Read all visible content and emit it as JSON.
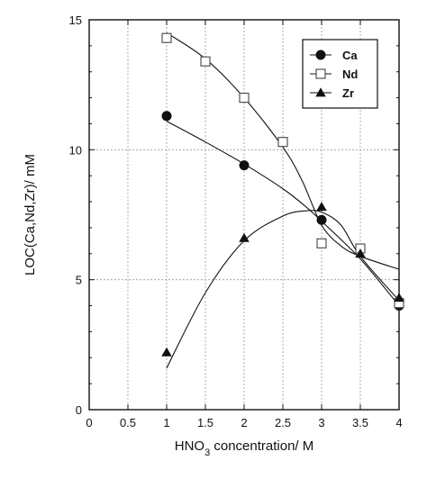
{
  "chart_data": {
    "type": "scatter",
    "title": "",
    "xlabel": "HNO3 concentration/ M",
    "xlabel_parts": {
      "pre": "HNO",
      "sub": "3",
      "post": " concentration/ M"
    },
    "ylabel": "LOC(Ca,Nd,Zr)/ mM",
    "xlim": [
      0,
      4
    ],
    "ylim": [
      0,
      15
    ],
    "xticks": [
      "0",
      "0.5",
      "1",
      "1.5",
      "2",
      "2.5",
      "3",
      "3.5",
      "4"
    ],
    "yticks": [
      "0",
      "5",
      "10",
      "15"
    ],
    "grid": true,
    "legend_position": "top-right",
    "series": [
      {
        "name": "Ca",
        "marker": "filled-circle",
        "color": "#111111",
        "x": [
          1,
          2,
          3,
          4
        ],
        "y": [
          11.3,
          9.4,
          7.3,
          4.0
        ],
        "curve": [
          [
            1,
            11.1
          ],
          [
            1.5,
            10.3
          ],
          [
            2,
            9.45
          ],
          [
            2.5,
            8.5
          ],
          [
            2.8,
            7.8
          ],
          [
            3,
            7.25
          ],
          [
            3.5,
            5.8
          ],
          [
            4,
            4.0
          ]
        ]
      },
      {
        "name": "Nd",
        "marker": "open-square",
        "color": "#333333",
        "x": [
          1,
          1.5,
          2,
          2.5,
          3,
          3.5,
          4
        ],
        "y": [
          14.3,
          13.4,
          12.0,
          10.3,
          6.4,
          6.2,
          4.1
        ],
        "curve": [
          [
            1,
            14.5
          ],
          [
            1.5,
            13.5
          ],
          [
            2,
            12.0
          ],
          [
            2.5,
            10.1
          ],
          [
            2.75,
            8.8
          ],
          [
            3,
            7.1
          ],
          [
            3.25,
            6.3
          ],
          [
            3.5,
            5.9
          ],
          [
            4,
            5.4
          ]
        ]
      },
      {
        "name": "Zr",
        "marker": "filled-triangle",
        "color": "#111111",
        "x": [
          1,
          2,
          3,
          3.5,
          4
        ],
        "y": [
          2.2,
          6.6,
          7.8,
          6.0,
          4.3
        ],
        "curve": [
          [
            1,
            1.6
          ],
          [
            1.5,
            4.5
          ],
          [
            2,
            6.5
          ],
          [
            2.5,
            7.45
          ],
          [
            2.8,
            7.65
          ],
          [
            3,
            7.6
          ],
          [
            3.25,
            7.1
          ],
          [
            3.5,
            5.9
          ],
          [
            4,
            4.2
          ]
        ]
      }
    ]
  }
}
